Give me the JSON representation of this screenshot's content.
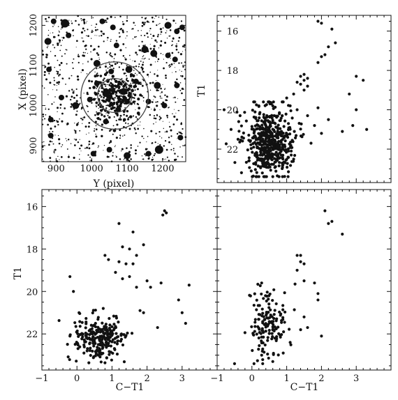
{
  "chart_data": [
    {
      "panel": "image",
      "type": "scatter",
      "xlabel": "Y (pixel)",
      "ylabel": "X (pixel)",
      "xlim": [
        860,
        1265
      ],
      "ylim": [
        860,
        1225
      ],
      "xticks": [
        {
          "v": 900,
          "label": "900"
        },
        {
          "v": 1000,
          "label": "1000"
        },
        {
          "v": 1100,
          "label": "1100"
        },
        {
          "v": 1200,
          "label": "1200"
        }
      ],
      "yticks": [
        {
          "v": 900,
          "label": "900"
        },
        {
          "v": 1000,
          "label": "1000"
        },
        {
          "v": 1100,
          "label": "1100"
        },
        {
          "v": 1200,
          "label": "1200"
        }
      ],
      "circles": [
        {
          "cx": 1065,
          "cy": 1025,
          "r": 95
        },
        {
          "cx": 1065,
          "cy": 1025,
          "r": 48
        }
      ],
      "bright_stars": [
        [
          877,
          1160,
          5
        ],
        [
          893,
          1210,
          4
        ],
        [
          925,
          1205,
          6
        ],
        [
          935,
          1175,
          4
        ],
        [
          1030,
          1210,
          4
        ],
        [
          1060,
          1195,
          4
        ],
        [
          1070,
          1150,
          4
        ],
        [
          1150,
          1140,
          5
        ],
        [
          1175,
          1130,
          5
        ],
        [
          1215,
          1200,
          5
        ],
        [
          1240,
          1185,
          4
        ],
        [
          1255,
          1195,
          4
        ],
        [
          1235,
          1115,
          4
        ],
        [
          1215,
          1125,
          4
        ],
        [
          1105,
          1090,
          5
        ],
        [
          1055,
          1085,
          4
        ],
        [
          915,
          1020,
          4
        ],
        [
          885,
          965,
          4
        ],
        [
          955,
          1000,
          5
        ],
        [
          1015,
          1055,
          4
        ],
        [
          1040,
          1030,
          5
        ],
        [
          1090,
          1035,
          5
        ],
        [
          1100,
          1010,
          4
        ],
        [
          1185,
          1050,
          5
        ],
        [
          1205,
          1000,
          4
        ],
        [
          1240,
          1050,
          4
        ],
        [
          1190,
          890,
          6
        ],
        [
          1050,
          890,
          4
        ],
        [
          1100,
          875,
          5
        ],
        [
          1160,
          880,
          4
        ],
        [
          885,
          925,
          4
        ],
        [
          1040,
          960,
          4
        ],
        [
          1075,
          990,
          4
        ],
        [
          1125,
          1060,
          4
        ],
        [
          1015,
          1105,
          5
        ],
        [
          995,
          1015,
          4
        ],
        [
          1160,
          1010,
          4
        ],
        [
          1250,
          920,
          4
        ],
        [
          880,
          1090,
          4
        ],
        [
          1005,
          880,
          4
        ]
      ]
    },
    {
      "panel": "cmd-field-top-right",
      "type": "scatter",
      "xlabel": "",
      "ylabel": "T1",
      "xlim": [
        -1,
        4
      ],
      "ylim": [
        23.7,
        15.2
      ],
      "yticks": [
        16,
        18,
        20,
        22
      ]
    },
    {
      "panel": "cmd-bottom-left",
      "type": "scatter",
      "xlabel": "C−T1",
      "ylabel": "T1",
      "xlim": [
        -1,
        4
      ],
      "ylim": [
        23.7,
        15.2
      ],
      "xticks": [
        -1,
        0,
        1,
        2,
        3
      ],
      "yticks": [
        16,
        18,
        20,
        22
      ]
    },
    {
      "panel": "cmd-bottom-right",
      "type": "scatter",
      "xlabel": "C−T1",
      "ylabel": "",
      "xlim": [
        -1,
        4
      ],
      "ylim": [
        23.7,
        15.2
      ],
      "xticks": [
        -1,
        0,
        1,
        2,
        3
      ]
    }
  ],
  "labels": {
    "img_x": "Y (pixel)",
    "img_y": "X (pixel)",
    "tr_y": "T1",
    "bl_y": "T1",
    "bl_x": "C−T1",
    "br_x": "C−T1"
  }
}
